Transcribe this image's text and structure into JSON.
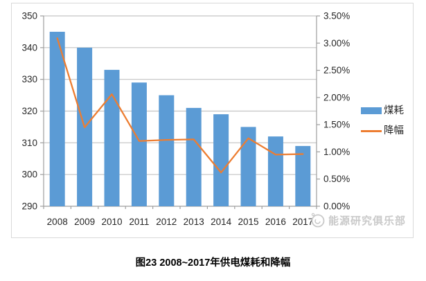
{
  "chart_data": {
    "type": "bar",
    "subtype": "combo-bar-line",
    "categories": [
      "2008",
      "2009",
      "2010",
      "2011",
      "2012",
      "2013",
      "2014",
      "2015",
      "2016",
      "2017"
    ],
    "series": [
      {
        "name": "煤耗",
        "type": "bar",
        "axis": "left",
        "color": "#5B9BD5",
        "values": [
          345,
          340,
          333,
          329,
          325,
          321,
          319,
          315,
          312,
          309
        ]
      },
      {
        "name": "降幅",
        "type": "line",
        "axis": "right",
        "color": "#ED7D31",
        "values": [
          3.09,
          1.45,
          2.06,
          1.2,
          1.22,
          1.23,
          0.62,
          1.25,
          0.95,
          0.96
        ]
      }
    ],
    "left_axis": {
      "min": 290,
      "max": 350,
      "step": 10,
      "tick_labels": [
        "290",
        "300",
        "310",
        "320",
        "330",
        "340",
        "350"
      ]
    },
    "right_axis": {
      "min": 0,
      "max": 3.5,
      "step": 0.5,
      "tick_labels": [
        "0.00%",
        "0.50%",
        "1.00%",
        "1.50%",
        "2.00%",
        "2.50%",
        "3.00%",
        "3.50%"
      ]
    },
    "legend": {
      "position": "right",
      "items": [
        "煤耗",
        "降幅"
      ]
    },
    "grid": true,
    "title": "图23 2008~2017年供电煤耗和降幅"
  },
  "caption": "图23  2008~2017年供电煤耗和降幅",
  "watermark": "能源研究俱乐部",
  "colors": {
    "bar": "#5B9BD5",
    "line": "#ED7D31",
    "grid": "#c3c3c3",
    "axis": "#9e9e9e",
    "text": "#262626",
    "frame": "#d9d9d9",
    "watermark": "#c9c9c9"
  }
}
